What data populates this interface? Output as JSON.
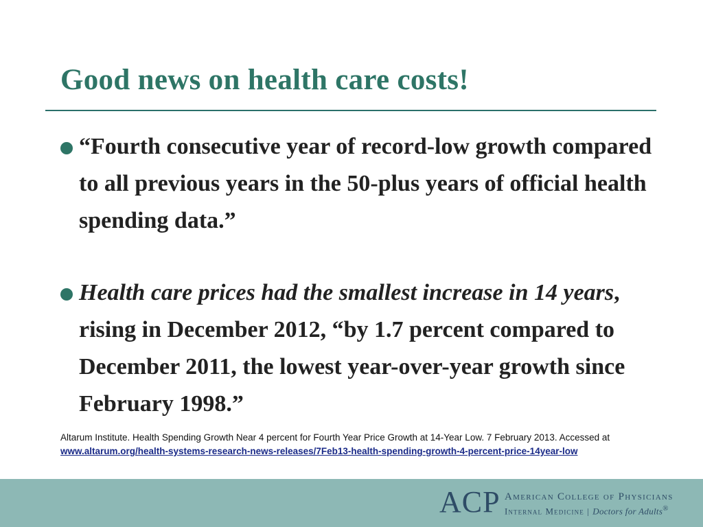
{
  "slide": {
    "title": "Good news on health care costs!",
    "bullets": [
      {
        "text": "“Fourth consecutive year of record-low growth compared to all previous years in the 50-plus years of official health spending data.”"
      },
      {
        "italic": "Health care prices had the smallest increase in 14 years",
        "rest": ", rising in December 2012, “by 1.7 percent compared to December 2011, the lowest year-over-year growth since February 1998.”"
      }
    ],
    "citation": {
      "text": "Altarum Institute. Health Spending Growth Near 4 percent for Fourth Year Price Growth at 14-Year Low. 7 February 2013. Accessed at ",
      "link": "www.altarum.org/health-systems-research-news-releases/7Feb13-health-spending-growth-4-percent-price-14year-low"
    }
  },
  "footer": {
    "logo_mark": "ACP",
    "org_name": "American College of Physicians",
    "dept": "Internal Medicine",
    "separator": "|",
    "tagline": "Doctors for Adults",
    "registered": "®"
  },
  "colors": {
    "title": "#2e7566",
    "footer_bg": "#8db8b5",
    "logo": "#2e4c66",
    "link": "#1a2a88"
  }
}
